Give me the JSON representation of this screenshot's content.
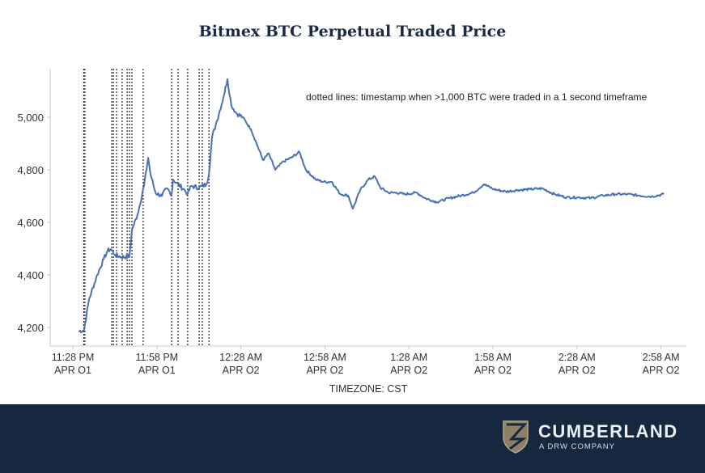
{
  "chart_data": {
    "type": "line",
    "title": "Bitmex BTC Perpetual Traded Price",
    "xlabel": "TIMEZONE: CST",
    "ylabel": "",
    "annotation": "dotted lines: timestamp when >1,000 BTC were traded in a 1 second timeframe",
    "x_unit": "minutes after 11:28 PM APR 01",
    "xlim": [
      -8,
      216
    ],
    "ylim": [
      4130,
      5180
    ],
    "yticks": [
      4200,
      4400,
      4600,
      4800,
      5000
    ],
    "ytick_labels": [
      "4,200",
      "4,400",
      "4,600",
      "4,800",
      "5,000"
    ],
    "xticks": [
      0,
      30,
      60,
      90,
      120,
      150,
      180,
      210
    ],
    "xtick_labels": [
      [
        "11:28 PM",
        "APR O1"
      ],
      [
        "11:58 PM",
        "APR O1"
      ],
      [
        "12:28 AM",
        "APR O2"
      ],
      [
        "12:58 AM",
        "APR O2"
      ],
      [
        "1:28 AM",
        "APR O2"
      ],
      [
        "1:58 AM",
        "APR O2"
      ],
      [
        "2:28 AM",
        "APR O2"
      ],
      [
        "2:58 AM",
        "APR O2"
      ]
    ],
    "dotted_lines": [
      3.9,
      4.3,
      13.9,
      14.5,
      15.6,
      17.6,
      19.4,
      20.2,
      21.1,
      25.1,
      35.3,
      37.6,
      41.0,
      45.1,
      46.2,
      48.6
    ],
    "series": [
      {
        "name": "Traded Price",
        "color": "#4a72b0",
        "points": [
          [
            2,
            4185
          ],
          [
            4,
            4190
          ],
          [
            5.8,
            4308
          ],
          [
            8.7,
            4400
          ],
          [
            11,
            4460
          ],
          [
            12.4,
            4492
          ],
          [
            13.6,
            4498
          ],
          [
            15,
            4477
          ],
          [
            17.3,
            4468
          ],
          [
            20.2,
            4470
          ],
          [
            21.1,
            4570
          ],
          [
            23.1,
            4630
          ],
          [
            25.4,
            4738
          ],
          [
            26.9,
            4846
          ],
          [
            27.7,
            4785
          ],
          [
            29.5,
            4713
          ],
          [
            31.8,
            4700
          ],
          [
            33.5,
            4729
          ],
          [
            35.3,
            4707
          ],
          [
            35.8,
            4763
          ],
          [
            37.6,
            4745
          ],
          [
            39.9,
            4723
          ],
          [
            41,
            4708
          ],
          [
            42.2,
            4738
          ],
          [
            45.1,
            4732
          ],
          [
            47.7,
            4745
          ],
          [
            48.6,
            4785
          ],
          [
            49.7,
            4923
          ],
          [
            51.4,
            4985
          ],
          [
            53.8,
            5077
          ],
          [
            55.2,
            5145
          ],
          [
            56.6,
            5046
          ],
          [
            58.4,
            5015
          ],
          [
            60.7,
            5000
          ],
          [
            63.6,
            4954
          ],
          [
            65.9,
            4892
          ],
          [
            67.9,
            4837
          ],
          [
            69.9,
            4862
          ],
          [
            72.3,
            4800
          ],
          [
            75.1,
            4831
          ],
          [
            78,
            4846
          ],
          [
            80.9,
            4868
          ],
          [
            83.2,
            4800
          ],
          [
            86.7,
            4763
          ],
          [
            89.6,
            4754
          ],
          [
            92.5,
            4754
          ],
          [
            95.4,
            4708
          ],
          [
            98.3,
            4702
          ],
          [
            100,
            4652
          ],
          [
            102.6,
            4723
          ],
          [
            105.5,
            4763
          ],
          [
            107.8,
            4775
          ],
          [
            109.8,
            4732
          ],
          [
            112.7,
            4713
          ],
          [
            115.6,
            4713
          ],
          [
            118.5,
            4707
          ],
          [
            122.8,
            4713
          ],
          [
            125.7,
            4692
          ],
          [
            130,
            4677
          ],
          [
            134.4,
            4692
          ],
          [
            138.7,
            4702
          ],
          [
            143,
            4713
          ],
          [
            146.8,
            4745
          ],
          [
            150.3,
            4726
          ],
          [
            154.6,
            4717
          ],
          [
            159,
            4723
          ],
          [
            163.3,
            4726
          ],
          [
            167.6,
            4729
          ],
          [
            172,
            4707
          ],
          [
            176.3,
            4695
          ],
          [
            180.6,
            4695
          ],
          [
            185,
            4692
          ],
          [
            189.3,
            4702
          ],
          [
            193.6,
            4707
          ],
          [
            198,
            4707
          ],
          [
            202.3,
            4702
          ],
          [
            206.6,
            4698
          ],
          [
            211,
            4707
          ]
        ]
      }
    ]
  },
  "footer": {
    "brand": "CUMBERLAND",
    "tagline": "A DRW COMPANY"
  }
}
